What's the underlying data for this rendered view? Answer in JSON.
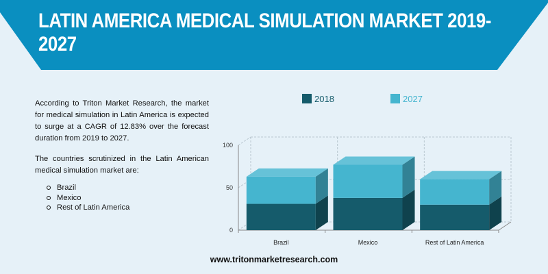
{
  "header": {
    "title": "LATIN AMERICA MEDICAL SIMULATION MARKET 2019-2027"
  },
  "intro": {
    "paragraph1": "According to Triton Market Research, the market for medical simulation in Latin America is expected to surge at a CAGR of 12.83% over the forecast duration from 2019 to 2027.",
    "paragraph2": "The countries scrutinized in the Latin American medical simulation market are:",
    "countries": [
      "Brazil",
      "Mexico",
      "Rest of Latin America"
    ]
  },
  "colors": {
    "banner": "#0a8fc0",
    "series_2018": "#155b6b",
    "series_2027": "#45b5cf",
    "background": "#e6f1f8"
  },
  "chart_data": {
    "type": "bar",
    "stacked": true,
    "style": "3d",
    "categories": [
      "Brazil",
      "Mexico",
      "Rest of Latin America"
    ],
    "series": [
      {
        "name": "2018",
        "values": [
          31,
          38,
          30
        ]
      },
      {
        "name": "2027",
        "values": [
          32,
          39,
          30
        ]
      }
    ],
    "yticks": [
      0,
      50,
      100
    ],
    "ylim": [
      0,
      100
    ],
    "grid": true,
    "legend": "top-center"
  },
  "footer": {
    "url": "www.tritonmarketresearch.com"
  }
}
